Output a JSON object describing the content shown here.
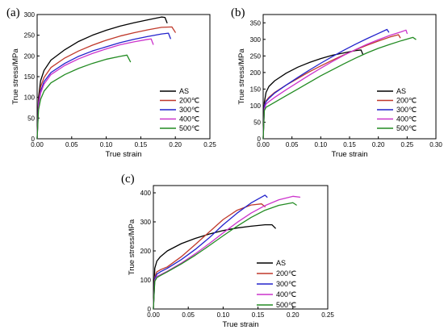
{
  "figure": {
    "series_colors": {
      "AS": "#000000",
      "200℃": "#c0392b",
      "300℃": "#2222cc",
      "400℃": "#cc33cc",
      "500℃": "#228b22"
    }
  },
  "chart_data": [
    {
      "panel": "(a)",
      "type": "line",
      "xlabel": "True strain",
      "ylabel": "True stress/MPa",
      "xlim": [
        0,
        0.25
      ],
      "ylim": [
        0,
        300
      ],
      "xticks": [
        "0.00",
        "0.05",
        "0.10",
        "0.15",
        "0.20",
        "0.25"
      ],
      "yticks": [
        "0",
        "50",
        "100",
        "150",
        "200",
        "250",
        "300"
      ],
      "legend": "right",
      "series": [
        {
          "name": "AS",
          "color": "#000000",
          "x": [
            0.0,
            0.002,
            0.005,
            0.01,
            0.02,
            0.04,
            0.06,
            0.08,
            0.1,
            0.12,
            0.14,
            0.16,
            0.18,
            0.185,
            0.188
          ],
          "y": [
            0,
            100,
            140,
            165,
            190,
            215,
            235,
            250,
            262,
            272,
            280,
            287,
            294,
            293,
            280
          ]
        },
        {
          "name": "200℃",
          "color": "#c0392b",
          "x": [
            0.0,
            0.002,
            0.005,
            0.01,
            0.02,
            0.04,
            0.06,
            0.08,
            0.1,
            0.12,
            0.14,
            0.16,
            0.18,
            0.195,
            0.2
          ],
          "y": [
            0,
            90,
            125,
            148,
            172,
            195,
            212,
            226,
            238,
            248,
            256,
            263,
            269,
            270,
            257
          ]
        },
        {
          "name": "300℃",
          "color": "#2222cc",
          "x": [
            0.0,
            0.002,
            0.005,
            0.01,
            0.02,
            0.04,
            0.06,
            0.08,
            0.1,
            0.12,
            0.14,
            0.16,
            0.18,
            0.19,
            0.193
          ],
          "y": [
            0,
            85,
            115,
            138,
            160,
            182,
            199,
            212,
            222,
            232,
            240,
            247,
            253,
            255,
            242
          ]
        },
        {
          "name": "400℃",
          "color": "#cc33cc",
          "x": [
            0.0,
            0.002,
            0.005,
            0.01,
            0.02,
            0.04,
            0.06,
            0.08,
            0.1,
            0.12,
            0.14,
            0.16,
            0.165,
            0.168
          ],
          "y": [
            0,
            80,
            110,
            132,
            155,
            177,
            193,
            206,
            217,
            227,
            234,
            240,
            241,
            228
          ]
        },
        {
          "name": "500℃",
          "color": "#228b22",
          "x": [
            0.0,
            0.002,
            0.005,
            0.01,
            0.02,
            0.04,
            0.06,
            0.08,
            0.1,
            0.12,
            0.13,
            0.135
          ],
          "y": [
            0,
            70,
            95,
            115,
            135,
            155,
            170,
            182,
            192,
            199,
            202,
            186
          ]
        }
      ]
    },
    {
      "panel": "(b)",
      "type": "line",
      "xlabel": "True strain",
      "ylabel": "True stress/MPa",
      "xlim": [
        0,
        0.3
      ],
      "ylim": [
        0,
        375
      ],
      "xticks": [
        "0.00",
        "0.05",
        "0.10",
        "0.15",
        "0.20",
        "0.25",
        "0.30"
      ],
      "yticks": [
        "0",
        "50",
        "100",
        "150",
        "200",
        "250",
        "300",
        "350"
      ],
      "legend": "right",
      "series": [
        {
          "name": "AS",
          "color": "#000000",
          "x": [
            0.0,
            0.002,
            0.005,
            0.01,
            0.02,
            0.04,
            0.06,
            0.08,
            0.1,
            0.12,
            0.14,
            0.16,
            0.17,
            0.173
          ],
          "y": [
            0,
            110,
            140,
            158,
            175,
            198,
            216,
            230,
            242,
            252,
            259,
            266,
            268,
            255
          ]
        },
        {
          "name": "200℃",
          "color": "#c0392b",
          "x": [
            0.0,
            0.002,
            0.005,
            0.01,
            0.02,
            0.04,
            0.06,
            0.08,
            0.1,
            0.12,
            0.14,
            0.16,
            0.18,
            0.2,
            0.22,
            0.235,
            0.238
          ],
          "y": [
            0,
            100,
            115,
            125,
            140,
            162,
            182,
            202,
            220,
            237,
            253,
            268,
            282,
            295,
            307,
            314,
            305
          ]
        },
        {
          "name": "300℃",
          "color": "#2222cc",
          "x": [
            0.0,
            0.002,
            0.005,
            0.01,
            0.02,
            0.04,
            0.06,
            0.08,
            0.1,
            0.12,
            0.14,
            0.16,
            0.18,
            0.2,
            0.215,
            0.218
          ],
          "y": [
            0,
            98,
            112,
            122,
            138,
            162,
            185,
            207,
            228,
            248,
            267,
            285,
            302,
            318,
            330,
            322
          ]
        },
        {
          "name": "400℃",
          "color": "#cc33cc",
          "x": [
            0.0,
            0.002,
            0.005,
            0.01,
            0.02,
            0.04,
            0.06,
            0.08,
            0.1,
            0.12,
            0.14,
            0.16,
            0.18,
            0.2,
            0.22,
            0.24,
            0.248,
            0.25
          ],
          "y": [
            0,
            90,
            105,
            112,
            125,
            148,
            170,
            192,
            213,
            233,
            252,
            269,
            285,
            299,
            312,
            323,
            328,
            318
          ]
        },
        {
          "name": "500℃",
          "color": "#228b22",
          "x": [
            0.0,
            0.002,
            0.005,
            0.01,
            0.02,
            0.04,
            0.06,
            0.08,
            0.1,
            0.12,
            0.14,
            0.16,
            0.18,
            0.2,
            0.22,
            0.24,
            0.26,
            0.265
          ],
          "y": [
            0,
            85,
            95,
            100,
            110,
            130,
            150,
            170,
            190,
            208,
            226,
            243,
            259,
            273,
            285,
            296,
            306,
            300
          ]
        }
      ]
    },
    {
      "panel": "(c)",
      "type": "line",
      "xlabel": "True strain",
      "ylabel": "True stress/MPa",
      "xlim": [
        0,
        0.25
      ],
      "ylim": [
        0,
        425
      ],
      "xticks": [
        "0.00",
        "0.05",
        "0.10",
        "0.15",
        "0.20",
        "0.25"
      ],
      "yticks": [
        "0",
        "100",
        "200",
        "300",
        "400"
      ],
      "legend": "center",
      "series": [
        {
          "name": "AS",
          "color": "#000000",
          "x": [
            0.0,
            0.002,
            0.005,
            0.01,
            0.02,
            0.04,
            0.06,
            0.08,
            0.1,
            0.12,
            0.14,
            0.16,
            0.17,
            0.175
          ],
          "y": [
            0,
            140,
            165,
            180,
            200,
            225,
            243,
            258,
            270,
            279,
            285,
            290,
            290,
            278
          ]
        },
        {
          "name": "200℃",
          "color": "#c0392b",
          "x": [
            0.0,
            0.002,
            0.005,
            0.01,
            0.02,
            0.04,
            0.06,
            0.08,
            0.1,
            0.12,
            0.14,
            0.155,
            0.16
          ],
          "y": [
            0,
            110,
            128,
            135,
            145,
            180,
            222,
            265,
            308,
            340,
            358,
            362,
            352
          ]
        },
        {
          "name": "300℃",
          "color": "#2222cc",
          "x": [
            0.0,
            0.002,
            0.005,
            0.01,
            0.02,
            0.04,
            0.06,
            0.08,
            0.1,
            0.12,
            0.14,
            0.16,
            0.163
          ],
          "y": [
            0,
            105,
            120,
            128,
            140,
            170,
            205,
            245,
            290,
            330,
            365,
            392,
            385
          ]
        },
        {
          "name": "400℃",
          "color": "#cc33cc",
          "x": [
            0.0,
            0.002,
            0.005,
            0.01,
            0.02,
            0.04,
            0.06,
            0.08,
            0.1,
            0.12,
            0.14,
            0.16,
            0.18,
            0.2,
            0.21
          ],
          "y": [
            0,
            100,
            112,
            118,
            130,
            158,
            190,
            225,
            262,
            298,
            330,
            356,
            376,
            388,
            385
          ]
        },
        {
          "name": "500℃",
          "color": "#228b22",
          "x": [
            0.0,
            0.002,
            0.005,
            0.01,
            0.02,
            0.04,
            0.06,
            0.08,
            0.1,
            0.12,
            0.14,
            0.16,
            0.18,
            0.2,
            0.205
          ],
          "y": [
            0,
            95,
            108,
            115,
            128,
            155,
            185,
            218,
            252,
            285,
            315,
            340,
            357,
            366,
            358
          ]
        }
      ]
    }
  ]
}
